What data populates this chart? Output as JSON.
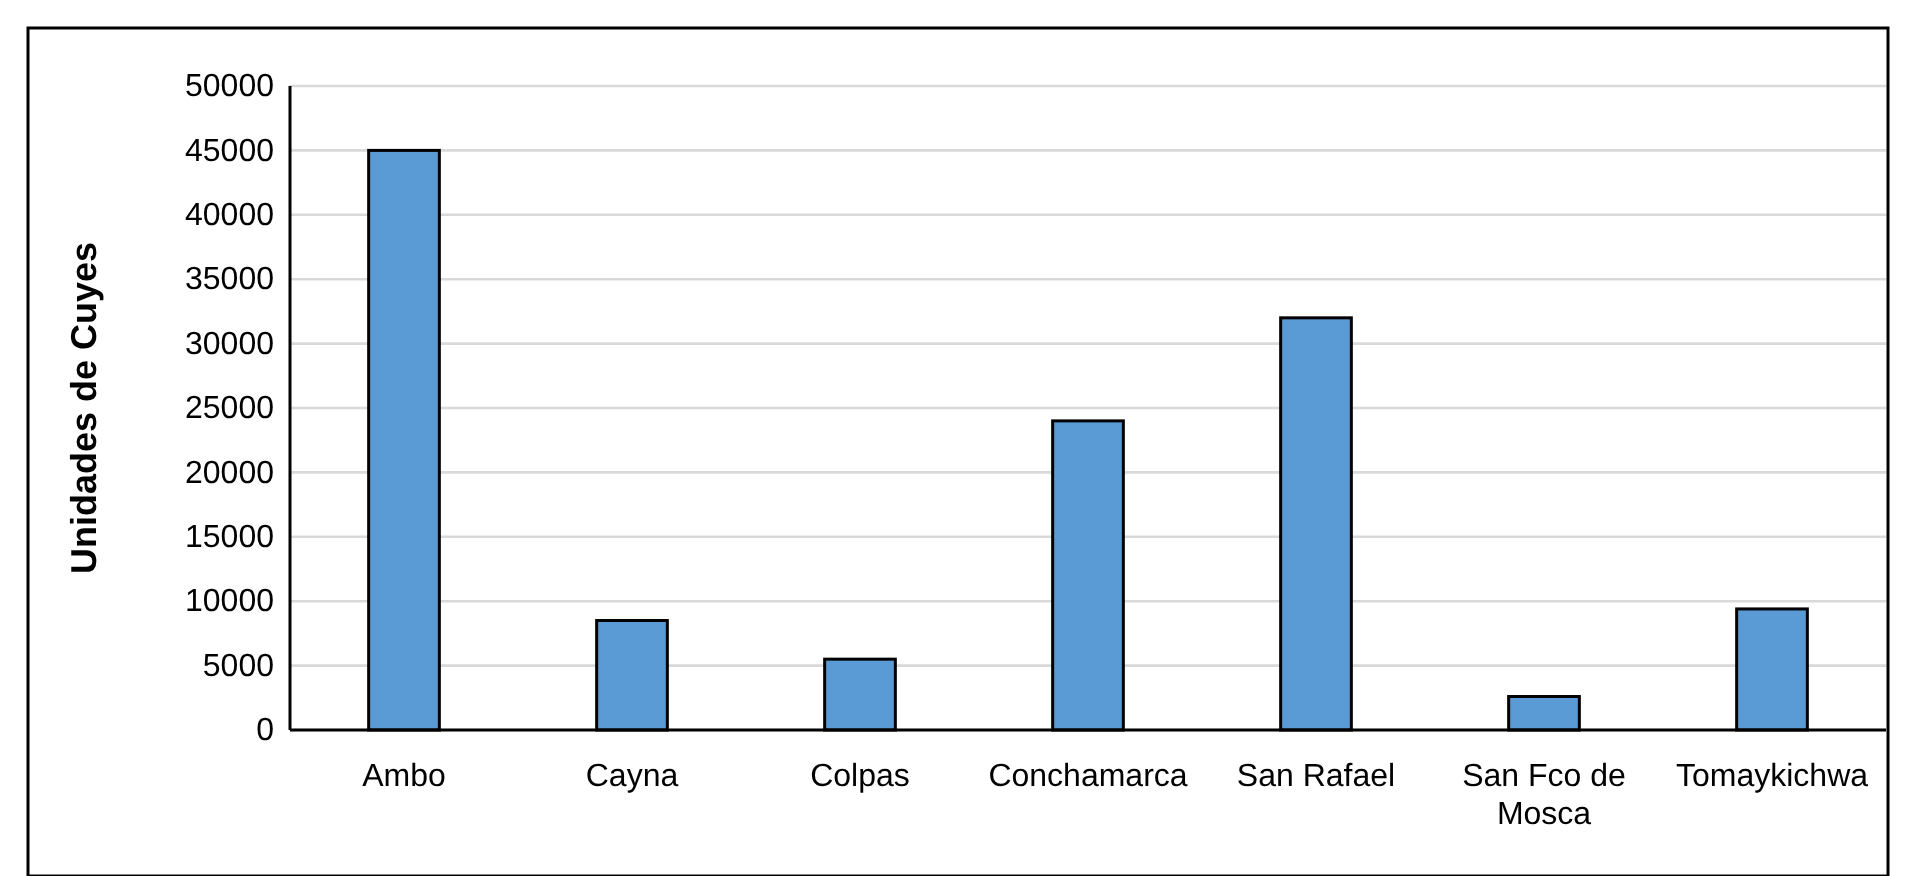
{
  "chart_data": {
    "type": "bar",
    "ylabel": "Unidades de Cuyes",
    "categories": [
      "Ambo",
      "Cayna",
      "Colpas",
      "Conchamarca",
      "San Rafael",
      "San Fco de Mosca",
      "Tomaykichwa"
    ],
    "values": [
      45000,
      8500,
      5500,
      24000,
      32000,
      2600,
      9400
    ],
    "color": "#5b9bd5",
    "ylim": [
      0,
      50000
    ],
    "yticks": [
      0,
      5000,
      10000,
      15000,
      20000,
      25000,
      30000,
      35000,
      40000,
      45000,
      50000
    ],
    "grid": "y"
  }
}
